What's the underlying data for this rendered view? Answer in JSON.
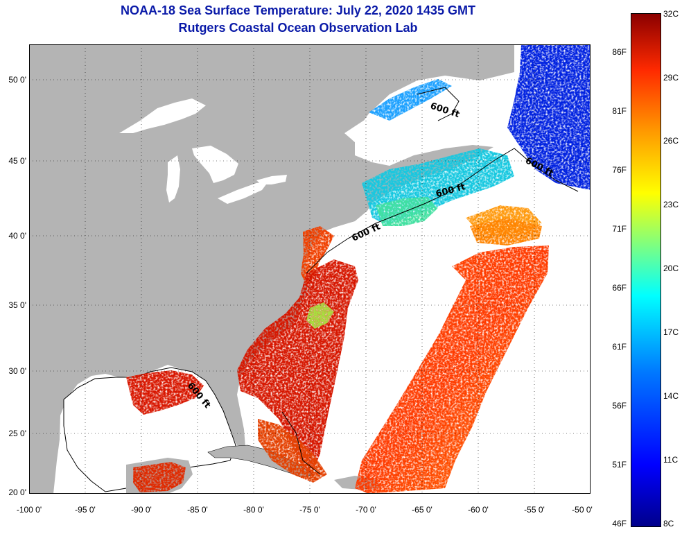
{
  "title_line1": "NOAA-18 Sea Surface Temperature:  July 22, 2020 1435 GMT",
  "title_line2": "Rutgers Coastal Ocean Observation Lab",
  "contour_label": "600 ft",
  "y_axis_labels": [
    "50 0'",
    "45 0'",
    "40 0'",
    "35 0'",
    "30 0'",
    "25 0'",
    "20 0'"
  ],
  "x_axis_labels": [
    "-100 0'",
    "-95 0'",
    "-90 0'",
    "-85 0'",
    "-80 0'",
    "-75 0'",
    "-70 0'",
    "-65 0'",
    "-60 0'",
    "-55 0'",
    "-50 0'"
  ],
  "colorbar": {
    "fahrenheit": [
      "86F",
      "81F",
      "76F",
      "71F",
      "66F",
      "61F",
      "56F",
      "51F",
      "46F"
    ],
    "celsius": [
      "32C",
      "29C",
      "26C",
      "23C",
      "20C",
      "17C",
      "14C",
      "11C",
      "8C"
    ]
  },
  "colors": {
    "title": "#0a1aa8",
    "land": "#b4b4b4",
    "no_data": "#ffffff"
  }
}
